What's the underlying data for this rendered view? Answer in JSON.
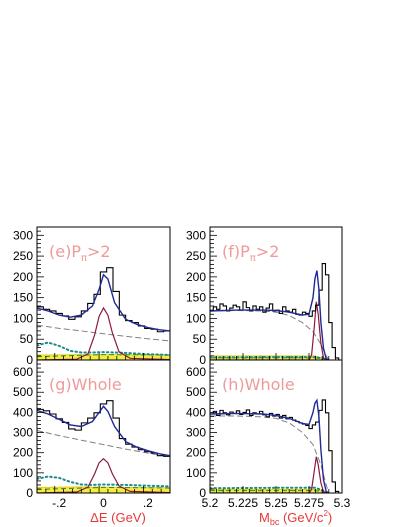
{
  "chart_data": [
    {
      "type": "line",
      "panel": "(e)P_π>2",
      "label_main": "(e)P",
      "label_sub": "π",
      "label_tail": ">2",
      "xlabel": "",
      "ylabel": "",
      "xlim": [
        -0.3,
        0.3
      ],
      "ylim": [
        0,
        320
      ],
      "xticks": [
        -0.2,
        0,
        0.2
      ],
      "yticks": [
        0,
        50,
        100,
        150,
        200,
        250,
        300
      ],
      "hist": [
        128,
        122,
        118,
        112,
        106,
        98,
        104,
        118,
        136,
        158,
        212,
        222,
        165,
        108,
        95,
        90,
        82,
        76,
        74,
        68,
        70
      ],
      "total_fit": [
        [
          -0.3,
          125
        ],
        [
          -0.25,
          118
        ],
        [
          -0.2,
          108
        ],
        [
          -0.15,
          103
        ],
        [
          -0.1,
          108
        ],
        [
          -0.05,
          130
        ],
        [
          -0.02,
          170
        ],
        [
          0,
          205
        ],
        [
          0.02,
          195
        ],
        [
          0.05,
          138
        ],
        [
          0.1,
          98
        ],
        [
          0.15,
          86
        ],
        [
          0.2,
          78
        ],
        [
          0.25,
          73
        ],
        [
          0.3,
          70
        ]
      ],
      "background": [
        [
          -0.3,
          84
        ],
        [
          -0.2,
          76
        ],
        [
          -0.1,
          70
        ],
        [
          0,
          63
        ],
        [
          0.1,
          57
        ],
        [
          0.2,
          51
        ],
        [
          0.3,
          46
        ]
      ],
      "signal": [
        [
          -0.3,
          0
        ],
        [
          -0.12,
          2
        ],
        [
          -0.07,
          15
        ],
        [
          -0.04,
          60
        ],
        [
          -0.02,
          105
        ],
        [
          0,
          125
        ],
        [
          0.02,
          108
        ],
        [
          0.04,
          65
        ],
        [
          0.07,
          20
        ],
        [
          0.12,
          4
        ],
        [
          0.3,
          1
        ]
      ],
      "dotted": [
        [
          -0.3,
          35
        ],
        [
          -0.25,
          42
        ],
        [
          -0.2,
          34
        ],
        [
          -0.15,
          22
        ],
        [
          -0.1,
          18
        ],
        [
          -0.05,
          18
        ],
        [
          0,
          19
        ],
        [
          0.1,
          17
        ],
        [
          0.2,
          14
        ],
        [
          0.3,
          12
        ]
      ],
      "fill_band": [
        [
          -0.3,
          12
        ],
        [
          -0.1,
          13
        ],
        [
          0.3,
          12
        ]
      ],
      "dashed_green": [
        [
          -0.3,
          8
        ],
        [
          0,
          13
        ],
        [
          0.3,
          12
        ]
      ]
    },
    {
      "type": "line",
      "panel": "(f)P_π>2",
      "label_main": "(f)P",
      "label_sub": "π",
      "label_tail": ">2",
      "xlabel": "",
      "ylabel": "",
      "xlim": [
        5.2,
        5.3
      ],
      "ylim": [
        0,
        320
      ],
      "xticks": [
        5.2,
        5.225,
        5.25,
        5.275,
        5.3
      ],
      "yticks": [
        0,
        50,
        100,
        150,
        200,
        250,
        300
      ],
      "hist": [
        118,
        128,
        122,
        135,
        130,
        118,
        125,
        132,
        128,
        120,
        140,
        126,
        118,
        130,
        122,
        128,
        115,
        125,
        135,
        118,
        120,
        112,
        128,
        118,
        115,
        122,
        110,
        108,
        115,
        112,
        105,
        118,
        132,
        168,
        232,
        205,
        90,
        30,
        5,
        0
      ],
      "total_fit": [
        [
          5.2,
          118
        ],
        [
          5.22,
          120
        ],
        [
          5.24,
          120
        ],
        [
          5.25,
          119
        ],
        [
          5.26,
          115
        ],
        [
          5.27,
          108
        ],
        [
          5.275,
          110
        ],
        [
          5.278,
          150
        ],
        [
          5.2795,
          195
        ],
        [
          5.281,
          215
        ],
        [
          5.2825,
          170
        ],
        [
          5.284,
          90
        ],
        [
          5.286,
          28
        ],
        [
          5.288,
          3
        ],
        [
          5.29,
          0
        ]
      ],
      "background": [
        [
          5.2,
          118
        ],
        [
          5.22,
          119
        ],
        [
          5.24,
          118
        ],
        [
          5.25,
          115
        ],
        [
          5.26,
          107
        ],
        [
          5.27,
          90
        ],
        [
          5.278,
          68
        ],
        [
          5.284,
          38
        ],
        [
          5.288,
          10
        ],
        [
          5.29,
          0
        ]
      ],
      "signal": [
        [
          5.2,
          0
        ],
        [
          5.275,
          0
        ],
        [
          5.277,
          12
        ],
        [
          5.279,
          80
        ],
        [
          5.2805,
          140
        ],
        [
          5.282,
          110
        ],
        [
          5.284,
          40
        ],
        [
          5.286,
          5
        ],
        [
          5.29,
          0
        ]
      ],
      "dotted": [
        [
          5.2,
          6
        ],
        [
          5.25,
          7
        ],
        [
          5.28,
          7
        ],
        [
          5.29,
          0
        ]
      ],
      "fill_band": [
        [
          5.2,
          10
        ],
        [
          5.28,
          10
        ],
        [
          5.29,
          0
        ]
      ],
      "dashed_green": [
        [
          5.2,
          5
        ],
        [
          5.28,
          5
        ],
        [
          5.29,
          0
        ]
      ]
    },
    {
      "type": "line",
      "panel": "(g)Whole",
      "label_main": "(g)Whole",
      "label_sub": "",
      "label_tail": "",
      "xlabel": "ΔE (GeV)",
      "ylabel": "",
      "xlim": [
        -0.3,
        0.3
      ],
      "ylim": [
        0,
        660
      ],
      "xticks": [
        -0.2,
        0,
        0.2
      ],
      "yticks": [
        0,
        100,
        200,
        300,
        400,
        500,
        600
      ],
      "hist": [
        415,
        408,
        392,
        368,
        350,
        318,
        312,
        348,
        372,
        398,
        442,
        458,
        372,
        270,
        242,
        228,
        215,
        205,
        198,
        185,
        182
      ],
      "total_fit": [
        [
          -0.3,
          410
        ],
        [
          -0.25,
          392
        ],
        [
          -0.2,
          365
        ],
        [
          -0.15,
          338
        ],
        [
          -0.1,
          330
        ],
        [
          -0.05,
          355
        ],
        [
          -0.02,
          400
        ],
        [
          0,
          430
        ],
        [
          0.02,
          405
        ],
        [
          0.05,
          330
        ],
        [
          0.1,
          255
        ],
        [
          0.15,
          228
        ],
        [
          0.2,
          210
        ],
        [
          0.25,
          195
        ],
        [
          0.3,
          185
        ]
      ],
      "background": [
        [
          -0.3,
          310
        ],
        [
          -0.2,
          285
        ],
        [
          -0.1,
          262
        ],
        [
          0,
          240
        ],
        [
          0.1,
          218
        ],
        [
          0.2,
          198
        ],
        [
          0.3,
          180
        ]
      ],
      "signal": [
        [
          -0.3,
          0
        ],
        [
          -0.12,
          5
        ],
        [
          -0.07,
          30
        ],
        [
          -0.04,
          95
        ],
        [
          -0.02,
          150
        ],
        [
          0,
          170
        ],
        [
          0.02,
          150
        ],
        [
          0.04,
          95
        ],
        [
          0.07,
          35
        ],
        [
          0.12,
          8
        ],
        [
          0.3,
          2
        ]
      ],
      "dotted": [
        [
          -0.3,
          70
        ],
        [
          -0.25,
          82
        ],
        [
          -0.2,
          75
        ],
        [
          -0.15,
          55
        ],
        [
          -0.1,
          42
        ],
        [
          -0.05,
          40
        ],
        [
          0,
          42
        ],
        [
          0.1,
          40
        ],
        [
          0.2,
          36
        ],
        [
          0.3,
          33
        ]
      ],
      "fill_band": [
        [
          -0.3,
          28
        ],
        [
          -0.1,
          30
        ],
        [
          0.3,
          26
        ]
      ],
      "dashed_green": [
        [
          -0.3,
          18
        ],
        [
          0,
          28
        ],
        [
          0.3,
          25
        ]
      ]
    },
    {
      "type": "line",
      "panel": "(h)Whole",
      "label_main": "(h)Whole",
      "label_sub": "",
      "label_tail": "",
      "xlabel": "M_bc (GeV/c^2)",
      "ylabel": "",
      "xlim": [
        5.2,
        5.3
      ],
      "ylim": [
        0,
        660
      ],
      "xticks": [
        5.2,
        5.225,
        5.25,
        5.275,
        5.3
      ],
      "yticks": [
        0,
        100,
        200,
        300,
        400,
        500,
        600
      ],
      "hist": [
        392,
        405,
        385,
        410,
        398,
        388,
        402,
        395,
        408,
        390,
        400,
        412,
        385,
        398,
        392,
        405,
        388,
        378,
        395,
        382,
        390,
        372,
        385,
        368,
        375,
        362,
        355,
        348,
        342,
        335,
        320,
        338,
        352,
        410,
        462,
        398,
        210,
        55,
        8,
        0
      ],
      "total_fit": [
        [
          5.2,
          392
        ],
        [
          5.22,
          395
        ],
        [
          5.24,
          392
        ],
        [
          5.25,
          385
        ],
        [
          5.26,
          370
        ],
        [
          5.27,
          345
        ],
        [
          5.275,
          340
        ],
        [
          5.278,
          400
        ],
        [
          5.2795,
          445
        ],
        [
          5.281,
          460
        ],
        [
          5.2825,
          380
        ],
        [
          5.284,
          215
        ],
        [
          5.286,
          65
        ],
        [
          5.288,
          8
        ],
        [
          5.29,
          0
        ]
      ],
      "background": [
        [
          5.2,
          382
        ],
        [
          5.22,
          382
        ],
        [
          5.24,
          378
        ],
        [
          5.25,
          370
        ],
        [
          5.26,
          348
        ],
        [
          5.27,
          300
        ],
        [
          5.278,
          240
        ],
        [
          5.284,
          140
        ],
        [
          5.288,
          40
        ],
        [
          5.29,
          0
        ]
      ],
      "signal": [
        [
          5.2,
          0
        ],
        [
          5.275,
          0
        ],
        [
          5.277,
          18
        ],
        [
          5.279,
          110
        ],
        [
          5.2805,
          180
        ],
        [
          5.282,
          140
        ],
        [
          5.284,
          50
        ],
        [
          5.286,
          6
        ],
        [
          5.29,
          0
        ]
      ],
      "dotted": [
        [
          5.2,
          24
        ],
        [
          5.25,
          26
        ],
        [
          5.28,
          26
        ],
        [
          5.29,
          0
        ]
      ],
      "fill_band": [
        [
          5.2,
          18
        ],
        [
          5.28,
          18
        ],
        [
          5.29,
          0
        ]
      ],
      "dashed_green": [
        [
          5.2,
          12
        ],
        [
          5.28,
          12
        ],
        [
          5.29,
          0
        ]
      ]
    }
  ],
  "colors": {
    "hist": "#000000",
    "total_fit": "#1e2a96",
    "background": "#808080",
    "signal": "#8b1a3c",
    "dotted": "#1b8a8a",
    "fill_band": "#f5ec42",
    "dashed_green": "#2e8b2e",
    "panel_label": "#ef9a9a",
    "axis_label": "#e53935"
  },
  "xlabel_left": {
    "text": "ΔE (GeV)"
  },
  "xlabel_right": {
    "main": "M",
    "sub": "bc",
    "pre": " (GeV/c",
    "sup": "2",
    "post": ")"
  }
}
